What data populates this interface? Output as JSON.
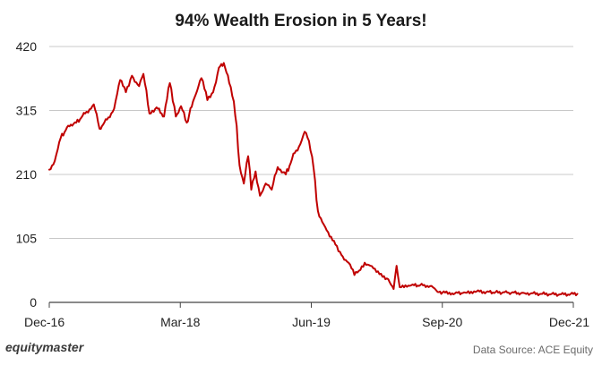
{
  "chart_data": {
    "type": "line",
    "title": "94% Wealth Erosion in 5 Years!",
    "xlabel": "",
    "ylabel": "",
    "ylim": [
      0,
      420
    ],
    "yticks": [
      0,
      105,
      210,
      315,
      420
    ],
    "xticks": [
      "Dec-16",
      "Mar-18",
      "Jun-19",
      "Sep-20",
      "Dec-21"
    ],
    "grid": "horizontal",
    "legend": "none",
    "line_color": "#c00000",
    "series": [
      {
        "values": [
          {
            "x": "2016-12-01",
            "y": 218
          },
          {
            "x": "2016-12-20",
            "y": 232
          },
          {
            "x": "2017-01-10",
            "y": 270
          },
          {
            "x": "2017-02-05",
            "y": 290
          },
          {
            "x": "2017-03-05",
            "y": 295
          },
          {
            "x": "2017-04-05",
            "y": 310
          },
          {
            "x": "2017-05-05",
            "y": 325
          },
          {
            "x": "2017-05-25",
            "y": 285
          },
          {
            "x": "2017-06-20",
            "y": 300
          },
          {
            "x": "2017-07-15",
            "y": 318
          },
          {
            "x": "2017-08-05",
            "y": 365
          },
          {
            "x": "2017-08-25",
            "y": 345
          },
          {
            "x": "2017-09-15",
            "y": 372
          },
          {
            "x": "2017-10-10",
            "y": 355
          },
          {
            "x": "2017-10-25",
            "y": 375
          },
          {
            "x": "2017-11-15",
            "y": 310
          },
          {
            "x": "2017-12-10",
            "y": 320
          },
          {
            "x": "2018-01-05",
            "y": 305
          },
          {
            "x": "2018-01-25",
            "y": 360
          },
          {
            "x": "2018-02-15",
            "y": 305
          },
          {
            "x": "2018-03-05",
            "y": 322
          },
          {
            "x": "2018-03-25",
            "y": 295
          },
          {
            "x": "2018-04-20",
            "y": 335
          },
          {
            "x": "2018-05-15",
            "y": 368
          },
          {
            "x": "2018-06-05",
            "y": 332
          },
          {
            "x": "2018-06-25",
            "y": 345
          },
          {
            "x": "2018-07-15",
            "y": 385
          },
          {
            "x": "2018-08-01",
            "y": 393
          },
          {
            "x": "2018-08-20",
            "y": 360
          },
          {
            "x": "2018-09-05",
            "y": 330
          },
          {
            "x": "2018-09-15",
            "y": 290
          },
          {
            "x": "2018-09-25",
            "y": 225
          },
          {
            "x": "2018-10-10",
            "y": 195
          },
          {
            "x": "2018-10-25",
            "y": 240
          },
          {
            "x": "2018-11-05",
            "y": 185
          },
          {
            "x": "2018-11-20",
            "y": 215
          },
          {
            "x": "2018-12-05",
            "y": 175
          },
          {
            "x": "2018-12-25",
            "y": 195
          },
          {
            "x": "2019-01-15",
            "y": 185
          },
          {
            "x": "2019-02-05",
            "y": 222
          },
          {
            "x": "2019-03-05",
            "y": 210
          },
          {
            "x": "2019-04-05",
            "y": 245
          },
          {
            "x": "2019-04-25",
            "y": 260
          },
          {
            "x": "2019-05-10",
            "y": 280
          },
          {
            "x": "2019-05-25",
            "y": 265
          },
          {
            "x": "2019-06-10",
            "y": 220
          },
          {
            "x": "2019-06-25",
            "y": 150
          },
          {
            "x": "2019-07-15",
            "y": 128
          },
          {
            "x": "2019-08-05",
            "y": 108
          },
          {
            "x": "2019-08-25",
            "y": 95
          },
          {
            "x": "2019-09-15",
            "y": 78
          },
          {
            "x": "2019-10-10",
            "y": 65
          },
          {
            "x": "2019-10-30",
            "y": 45
          },
          {
            "x": "2019-11-15",
            "y": 52
          },
          {
            "x": "2019-12-05",
            "y": 65
          },
          {
            "x": "2019-12-25",
            "y": 60
          },
          {
            "x": "2020-01-15",
            "y": 50
          },
          {
            "x": "2020-02-05",
            "y": 42
          },
          {
            "x": "2020-02-25",
            "y": 38
          },
          {
            "x": "2020-03-15",
            "y": 22
          },
          {
            "x": "2020-03-25",
            "y": 60
          },
          {
            "x": "2020-04-05",
            "y": 25
          },
          {
            "x": "2020-04-25",
            "y": 28
          },
          {
            "x": "2020-05-25",
            "y": 28
          },
          {
            "x": "2020-06-25",
            "y": 28
          },
          {
            "x": "2020-07-25",
            "y": 27
          },
          {
            "x": "2020-08-15",
            "y": 17
          },
          {
            "x": "2020-09-10",
            "y": 16
          },
          {
            "x": "2020-10-15",
            "y": 15
          },
          {
            "x": "2020-11-20",
            "y": 16
          },
          {
            "x": "2020-12-20",
            "y": 18
          },
          {
            "x": "2021-02-01",
            "y": 17
          },
          {
            "x": "2021-04-15",
            "y": 16
          },
          {
            "x": "2021-06-15",
            "y": 15
          },
          {
            "x": "2021-08-15",
            "y": 14
          },
          {
            "x": "2021-10-15",
            "y": 13
          },
          {
            "x": "2021-12-15",
            "y": 14
          }
        ]
      }
    ]
  },
  "branding": {
    "logo_text": "equitymaster"
  },
  "footer": {
    "source": "Data Source: ACE Equity"
  }
}
